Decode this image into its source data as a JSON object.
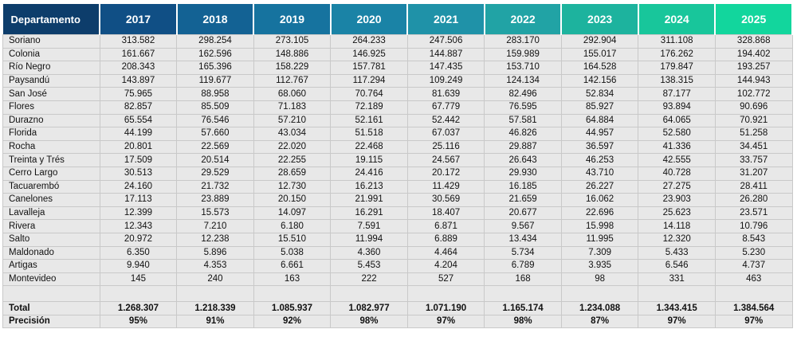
{
  "header": {
    "dept_label": "Departamento",
    "years": [
      "2017",
      "2018",
      "2019",
      "2020",
      "2021",
      "2022",
      "2023",
      "2024",
      "2025"
    ],
    "colors": [
      "#0d3d6b",
      "#104f85",
      "#136294",
      "#16739f",
      "#1a83a6",
      "#1f92a8",
      "#21a3a5",
      "#1db39e",
      "#18c69b",
      "#12d69d"
    ]
  },
  "rows": [
    {
      "name": "Soriano",
      "values": [
        "313.582",
        "298.254",
        "273.105",
        "264.233",
        "247.506",
        "283.170",
        "292.904",
        "311.108",
        "328.868"
      ]
    },
    {
      "name": "Colonia",
      "values": [
        "161.667",
        "162.596",
        "148.886",
        "146.925",
        "144.887",
        "159.989",
        "155.017",
        "176.262",
        "194.402"
      ]
    },
    {
      "name": "Río Negro",
      "values": [
        "208.343",
        "165.396",
        "158.229",
        "157.781",
        "147.435",
        "153.710",
        "164.528",
        "179.847",
        "193.257"
      ]
    },
    {
      "name": "Paysandú",
      "values": [
        "143.897",
        "119.677",
        "112.767",
        "117.294",
        "109.249",
        "124.134",
        "142.156",
        "138.315",
        "144.943"
      ]
    },
    {
      "name": "San José",
      "values": [
        "75.965",
        "88.958",
        "68.060",
        "70.764",
        "81.639",
        "82.496",
        "52.834",
        "87.177",
        "102.772"
      ]
    },
    {
      "name": "Flores",
      "values": [
        "82.857",
        "85.509",
        "71.183",
        "72.189",
        "67.779",
        "76.595",
        "85.927",
        "93.894",
        "90.696"
      ]
    },
    {
      "name": "Durazno",
      "values": [
        "65.554",
        "76.546",
        "57.210",
        "52.161",
        "52.442",
        "57.581",
        "64.884",
        "64.065",
        "70.921"
      ]
    },
    {
      "name": "Florida",
      "values": [
        "44.199",
        "57.660",
        "43.034",
        "51.518",
        "67.037",
        "46.826",
        "44.957",
        "52.580",
        "51.258"
      ]
    },
    {
      "name": "Rocha",
      "values": [
        "20.801",
        "22.569",
        "22.020",
        "22.468",
        "25.116",
        "29.887",
        "36.597",
        "41.336",
        "34.451"
      ]
    },
    {
      "name": "Treinta y Trés",
      "values": [
        "17.509",
        "20.514",
        "22.255",
        "19.115",
        "24.567",
        "26.643",
        "46.253",
        "42.555",
        "33.757"
      ]
    },
    {
      "name": "Cerro Largo",
      "values": [
        "30.513",
        "29.529",
        "28.659",
        "24.416",
        "20.172",
        "29.930",
        "43.710",
        "40.728",
        "31.207"
      ]
    },
    {
      "name": "Tacuarembó",
      "values": [
        "24.160",
        "21.732",
        "12.730",
        "16.213",
        "11.429",
        "16.185",
        "26.227",
        "27.275",
        "28.411"
      ]
    },
    {
      "name": "Canelones",
      "values": [
        "17.113",
        "23.889",
        "20.150",
        "21.991",
        "30.569",
        "21.659",
        "16.062",
        "23.903",
        "26.280"
      ]
    },
    {
      "name": "Lavalleja",
      "values": [
        "12.399",
        "15.573",
        "14.097",
        "16.291",
        "18.407",
        "20.677",
        "22.696",
        "25.623",
        "23.571"
      ]
    },
    {
      "name": "Rivera",
      "values": [
        "12.343",
        "7.210",
        "6.180",
        "7.591",
        "6.871",
        "9.567",
        "15.998",
        "14.118",
        "10.796"
      ]
    },
    {
      "name": "Salto",
      "values": [
        "20.972",
        "12.238",
        "15.510",
        "11.994",
        "6.889",
        "13.434",
        "11.995",
        "12.320",
        "8.543"
      ]
    },
    {
      "name": "Maldonado",
      "values": [
        "6.350",
        "5.896",
        "5.038",
        "4.360",
        "4.464",
        "5.734",
        "7.309",
        "5.433",
        "5.230"
      ]
    },
    {
      "name": "Artigas",
      "values": [
        "9.940",
        "4.353",
        "6.661",
        "5.453",
        "4.204",
        "6.789",
        "3.935",
        "6.546",
        "4.737"
      ]
    },
    {
      "name": "Montevideo",
      "values": [
        "145",
        "240",
        "163",
        "222",
        "527",
        "168",
        "98",
        "331",
        "463"
      ]
    }
  ],
  "total": {
    "name": "Total",
    "values": [
      "1.268.307",
      "1.218.339",
      "1.085.937",
      "1.082.977",
      "1.071.190",
      "1.165.174",
      "1.234.088",
      "1.343.415",
      "1.384.564"
    ]
  },
  "precision": {
    "name": "Precisión",
    "values": [
      "95%",
      "91%",
      "92%",
      "98%",
      "97%",
      "98%",
      "87%",
      "97%",
      "97%"
    ]
  }
}
